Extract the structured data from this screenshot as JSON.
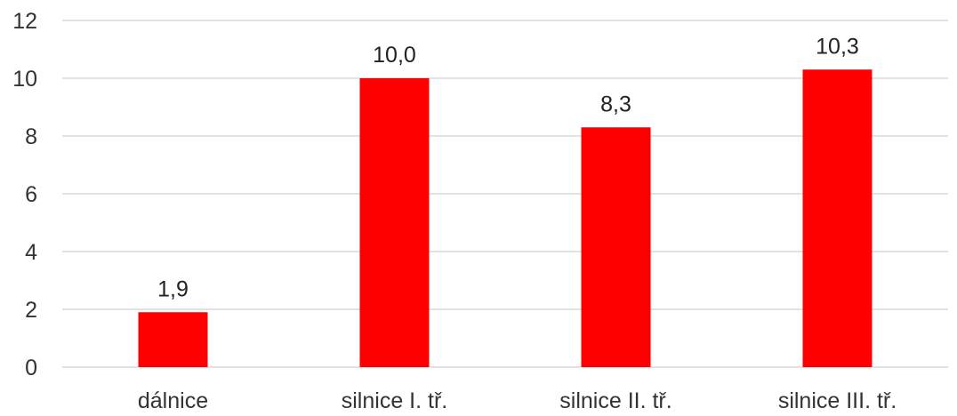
{
  "chart_data": {
    "type": "bar",
    "categories": [
      "dálnice",
      "silnice I. tř.",
      "silnice II. tř.",
      "silnice III. tř."
    ],
    "values": [
      1.9,
      10.0,
      8.3,
      10.3
    ],
    "value_labels": [
      "1,9",
      "10,0",
      "8,3",
      "10,3"
    ],
    "y_ticks": [
      "0",
      "2",
      "4",
      "6",
      "8",
      "10",
      "12"
    ],
    "ylim": [
      0,
      12
    ],
    "grid": true,
    "legend": "none",
    "bar_color": "#ff0000",
    "title": "",
    "xlabel": "",
    "ylabel": ""
  }
}
